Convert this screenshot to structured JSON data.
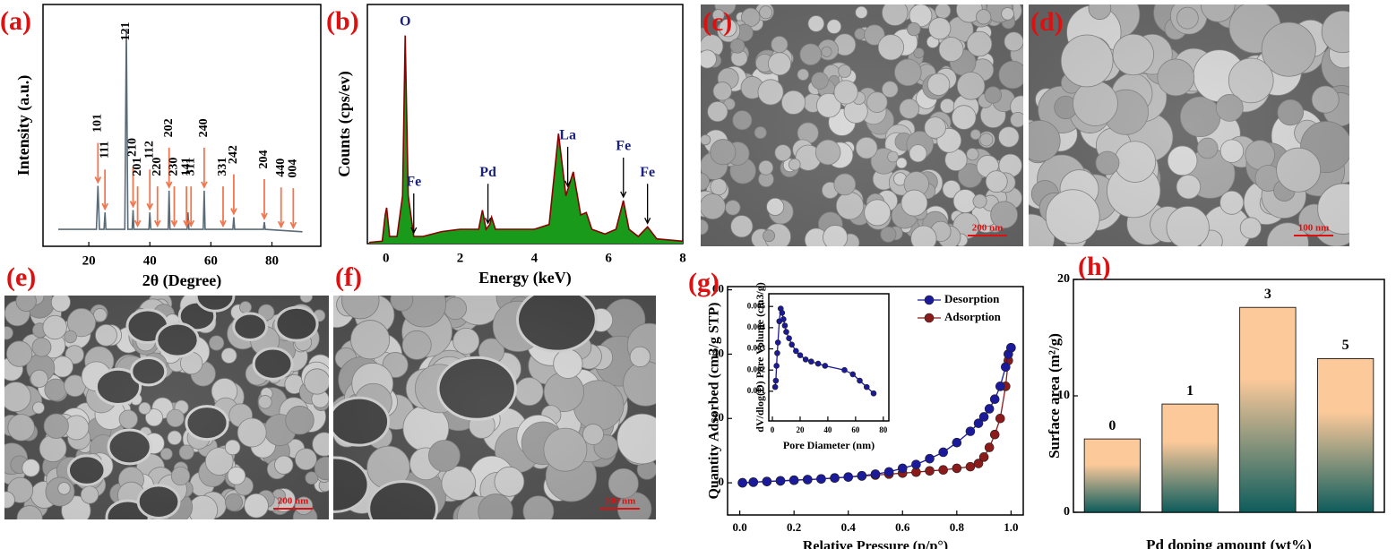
{
  "chart_data": [
    {
      "type": "line",
      "panel": "(a)",
      "xlabel": "2θ (Degree)",
      "ylabel": "Intensity (a.u.)",
      "color": "#5a6b78",
      "annotation_color": "#f07850",
      "xlim": [
        5,
        96
      ],
      "ylim": [
        0,
        100
      ],
      "xticks": [
        20,
        40,
        60,
        80
      ],
      "x": [
        10,
        22.5,
        23,
        23.5,
        25,
        25.3,
        25.6,
        31.8,
        32.3,
        32.8,
        34.2,
        34.5,
        34.8,
        39.7,
        40,
        40.3,
        46,
        46.3,
        46.6,
        52.2,
        52.5,
        52.8,
        57.5,
        57.8,
        58.1,
        67.2,
        67.5,
        67.8,
        77.2,
        77.5,
        77.8,
        90
      ],
      "values": [
        7,
        7,
        25,
        7,
        7,
        14,
        7,
        7,
        90,
        7,
        7,
        15,
        7,
        7,
        14,
        7,
        7,
        23,
        7,
        7,
        14,
        7,
        7,
        23,
        7,
        7,
        12,
        7,
        7,
        10,
        7,
        6
      ],
      "annotations": [
        {
          "text": "101",
          "x": 23
        },
        {
          "text": "111",
          "x": 25.3
        },
        {
          "text": "121",
          "x": 32.3
        },
        {
          "text": "210",
          "x": 34.5
        },
        {
          "text": "201",
          "x": 36
        },
        {
          "text": "112",
          "x": 40
        },
        {
          "text": "220",
          "x": 42.5
        },
        {
          "text": "202",
          "x": 46.3
        },
        {
          "text": "230",
          "x": 48
        },
        {
          "text": "141",
          "x": 52
        },
        {
          "text": "311",
          "x": 53.5
        },
        {
          "text": "240",
          "x": 57.8
        },
        {
          "text": "331",
          "x": 64
        },
        {
          "text": "242",
          "x": 67.5
        },
        {
          "text": "204",
          "x": 77.5
        },
        {
          "text": "440",
          "x": 83
        },
        {
          "text": "004",
          "x": 87
        }
      ]
    },
    {
      "type": "area",
      "panel": "(b)",
      "xlabel": "Energy (keV)",
      "ylabel": "Counts (cps/ev)",
      "color": "#8b0000",
      "fill": "#1a9a1a",
      "annotation_color": "#1a237e",
      "xlim": [
        -0.5,
        8
      ],
      "ylim": [
        0,
        100
      ],
      "xticks": [
        0,
        2,
        4,
        6,
        8
      ],
      "x": [
        -0.45,
        -0.1,
        -0.02,
        0.02,
        0.1,
        0.3,
        0.45,
        0.52,
        0.6,
        0.75,
        1.0,
        1.5,
        2.0,
        2.5,
        2.6,
        2.7,
        2.8,
        2.85,
        2.95,
        3.5,
        4.0,
        4.4,
        4.65,
        4.85,
        5.05,
        5.25,
        5.4,
        5.55,
        5.9,
        6.2,
        6.4,
        6.55,
        6.8,
        7.05,
        7.3,
        8.0
      ],
      "values": [
        0.5,
        1,
        12,
        15,
        3,
        3,
        20,
        87,
        20,
        3,
        3,
        5,
        6,
        6,
        14,
        6,
        8,
        11,
        6,
        6,
        6,
        8,
        46,
        20,
        30,
        12,
        13,
        6,
        4,
        6,
        18,
        6,
        3,
        7,
        2,
        1
      ],
      "annotations": [
        {
          "text": "O",
          "x": 0.52
        },
        {
          "text": "Fe",
          "x": 0.75
        },
        {
          "text": "Pd",
          "x": 2.75
        },
        {
          "text": "La",
          "x": 4.9
        },
        {
          "text": "Fe",
          "x": 6.4
        },
        {
          "text": "Fe",
          "x": 7.05
        }
      ]
    },
    {
      "type": "scatter",
      "panel": "(g)",
      "xlabel": "Relative Pressure (p/p°)",
      "ylabel": "Quantity Adsorbed (cm3/g STP)",
      "legend": "upper right",
      "xlim": [
        -0.045,
        1.045
      ],
      "ylim": [
        -10,
        61
      ],
      "xticks": [
        {
          "value": 0,
          "label": "0.0"
        },
        0.2,
        0.4,
        0.6,
        0.8,
        {
          "value": 1,
          "label": "1.0"
        }
      ],
      "yticks": [
        0,
        20,
        40,
        60
      ],
      "x": [
        0.01,
        0.05,
        0.1,
        0.15,
        0.2,
        0.25,
        0.3,
        0.35,
        0.4,
        0.45,
        0.5,
        0.55,
        0.6,
        0.65,
        0.7,
        0.75,
        0.8,
        0.85,
        0.88,
        0.9,
        0.92,
        0.94,
        0.96,
        0.98,
        0.99,
        1.0
      ],
      "series": [
        {
          "name": "Desorption",
          "color": "#1a1a9a",
          "values": [
            0,
            0.2,
            0.4,
            0.6,
            0.8,
            1,
            1.2,
            1.5,
            1.8,
            2.2,
            2.7,
            3.4,
            4.5,
            5.7,
            7.5,
            9.5,
            12.5,
            16,
            18.5,
            20.5,
            23,
            26,
            30,
            36,
            40,
            42
          ]
        },
        {
          "name": "Adsorption",
          "color": "#8b1a1a",
          "values": [
            0,
            0.2,
            0.4,
            0.6,
            0.8,
            1,
            1.2,
            1.5,
            1.8,
            2.1,
            2.4,
            2.7,
            3,
            3.3,
            3.7,
            4,
            4.5,
            5,
            6,
            8,
            11,
            15,
            20,
            30,
            38,
            42
          ]
        }
      ],
      "inset": {
        "type": "scatter",
        "xlabel": "Pore Diameter (nm)",
        "ylabel": "dV/dlog(D) Pore Volume (cm3/g)",
        "color": "#1a1a9a",
        "xlim": [
          -2.6,
          84
        ],
        "ylim": [
          -0.0004,
          0.0056
        ],
        "xticks": [
          0,
          20,
          40,
          60,
          80
        ],
        "yticks": [
          0.001,
          0.002,
          0.003,
          0.004,
          0.005
        ],
        "x": [
          2,
          2.5,
          3,
          3.5,
          4,
          5,
          6,
          7,
          8,
          9,
          10,
          12,
          14,
          17,
          20,
          24,
          28,
          33,
          38,
          52,
          58,
          63,
          68,
          73
        ],
        "values": [
          0.0012,
          0.0015,
          0.0022,
          0.0028,
          0.0033,
          0.0043,
          0.0049,
          0.0047,
          0.0044,
          0.0041,
          0.0038,
          0.0035,
          0.0032,
          0.0029,
          0.0027,
          0.0025,
          0.0024,
          0.0023,
          0.0022,
          0.002,
          0.0018,
          0.0015,
          0.0012,
          0.0009
        ]
      }
    },
    {
      "type": "bar",
      "panel": "(h)",
      "xlabel": "Pd doping amount (wt%)",
      "ylabel": "Surface area (m²/g)",
      "color_top": "#fbc99a",
      "color_bottom": "#0d5c5c",
      "ylim": [
        0,
        20
      ],
      "yticks": [
        0,
        10,
        20
      ],
      "categories": [
        "0",
        "1",
        "3",
        "5"
      ],
      "values": [
        6.3,
        9.3,
        17.6,
        13.2
      ]
    }
  ],
  "images": [
    {
      "panel": "(c)",
      "scale_bar": "200 nm"
    },
    {
      "panel": "(d)",
      "scale_bar": "100 nm"
    },
    {
      "panel": "(e)",
      "scale_bar": "200 nm"
    },
    {
      "panel": "(f)",
      "scale_bar": "100 nm"
    }
  ]
}
